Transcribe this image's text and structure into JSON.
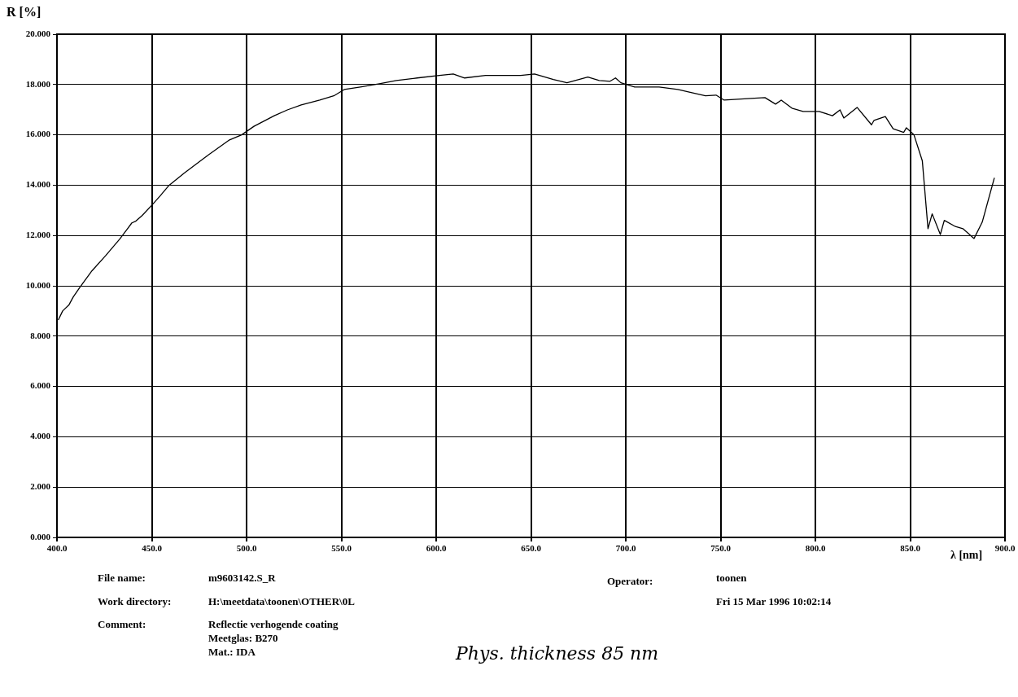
{
  "chart_data": {
    "type": "line",
    "ylabel": "R [%]",
    "xlabel": "λ  [nm]",
    "x": [
      400.7,
      403,
      406.4,
      408.6,
      412,
      418.5,
      425.7,
      433,
      436.5,
      439.5,
      441.6,
      445,
      450,
      454.4,
      459.2,
      467.3,
      478,
      491,
      497.4,
      503.9,
      514.6,
      521.5,
      528.8,
      538.6,
      546,
      551.5,
      560,
      570,
      579,
      590,
      601.7,
      609,
      615,
      626,
      644.6,
      651.9,
      661.8,
      669,
      680,
      686,
      691.7,
      694.6,
      697.4,
      704.7,
      717.6,
      727.5,
      733.5,
      742,
      747.6,
      751.9,
      766,
      773.4,
      779,
      782,
      787.6,
      793.5,
      802,
      809,
      813,
      815,
      822,
      829.6,
      830.9,
      836.9,
      841,
      846.6,
      848,
      852,
      856.4,
      859.4,
      861.6,
      865.9,
      868,
      873.5,
      877.8,
      883.7,
      888,
      894.4
    ],
    "series": [
      {
        "color": "#000000",
        "values": [
          8.64,
          9.0,
          9.25,
          9.56,
          9.93,
          10.6,
          11.2,
          11.85,
          12.2,
          12.5,
          12.57,
          12.8,
          13.2,
          13.57,
          14.0,
          14.49,
          15.1,
          15.8,
          16.0,
          16.34,
          16.76,
          16.99,
          17.19,
          17.38,
          17.55,
          17.8,
          17.9,
          18.03,
          18.16,
          18.26,
          18.36,
          18.42,
          18.26,
          18.36,
          18.36,
          18.42,
          18.2,
          18.07,
          18.3,
          18.16,
          18.13,
          18.26,
          18.07,
          17.9,
          17.9,
          17.8,
          17.7,
          17.55,
          17.58,
          17.38,
          17.45,
          17.48,
          17.22,
          17.38,
          17.06,
          16.93,
          16.93,
          16.76,
          16.99,
          16.67,
          17.09,
          16.4,
          16.57,
          16.73,
          16.24,
          16.1,
          16.28,
          16.0,
          14.97,
          12.27,
          12.86,
          12.04,
          12.6,
          12.37,
          12.27,
          11.88,
          12.53,
          14.29
        ]
      }
    ],
    "xlim": [
      400,
      900
    ],
    "xticks": [
      {
        "value": 400,
        "label": "400.0"
      },
      {
        "value": 450,
        "label": "450.0"
      },
      {
        "value": 500,
        "label": "500.0"
      },
      {
        "value": 550,
        "label": "550.0"
      },
      {
        "value": 600,
        "label": "600.0"
      },
      {
        "value": 650,
        "label": "650.0"
      },
      {
        "value": 700,
        "label": "700.0"
      },
      {
        "value": 750,
        "label": "750.0"
      },
      {
        "value": 800,
        "label": "800.0"
      },
      {
        "value": 850,
        "label": "850.0"
      },
      {
        "value": 900,
        "label": "900.0"
      }
    ],
    "ylim": [
      0,
      20
    ],
    "yticks": [
      {
        "value": 0,
        "label": "0.000"
      },
      {
        "value": 2,
        "label": "2.000"
      },
      {
        "value": 4,
        "label": "4.000"
      },
      {
        "value": 6,
        "label": "6.000"
      },
      {
        "value": 8,
        "label": "8.000"
      },
      {
        "value": 10,
        "label": "10.000"
      },
      {
        "value": 12,
        "label": "12.000"
      },
      {
        "value": 14,
        "label": "14.000"
      },
      {
        "value": 16,
        "label": "16.000"
      },
      {
        "value": 18,
        "label": "18.000"
      },
      {
        "value": 20,
        "label": "20.000"
      }
    ],
    "grid": true,
    "legend": false,
    "marker": "none",
    "line_style": "solid",
    "annotations": [
      "File name:",
      "m9603142.S_R",
      "Operator:",
      "toonen",
      "Work directory:",
      "H:\\meetdata\\toonen\\OTHER\\0L",
      "Fri 15 Mar 1996 10:02:14",
      "Comment:",
      "Reflectie verhogende coating",
      "Meetglas: B270",
      "Mat.: IDA",
      "Phys. thickness 85 nm"
    ]
  }
}
